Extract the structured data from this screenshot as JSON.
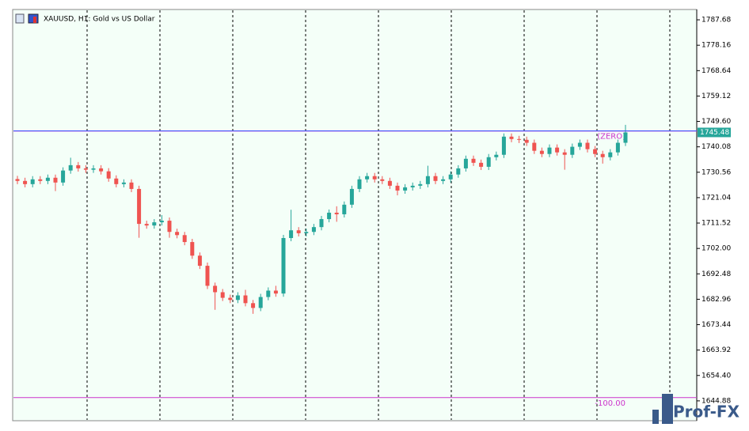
{
  "chart_data": {
    "type": "candlestick",
    "title": "XAUUSD, H1:  Gold vs US Dollar",
    "watermark": "Prof-FX",
    "up_color": "#26a69a",
    "down_color": "#ef5350",
    "ylim": [
      1637.44,
      1791.55
    ],
    "yticks": [
      1787.68,
      1778.16,
      1768.64,
      1759.12,
      {
        "value": 1749.6,
        "label": "1749.60"
      },
      1740.08,
      1730.56,
      1721.04,
      1711.52,
      {
        "value": 1702,
        "label": "1702.00"
      },
      1692.48,
      1682.96,
      1673.44,
      1663.92,
      {
        "value": 1654.4,
        "label": "1654.40"
      },
      1644.88
    ],
    "bid": 1745.48,
    "levels": [
      {
        "label": "(ZERO)",
        "value": 1746.0,
        "color": "#cc33cc"
      },
      {
        "label": "-100.00",
        "value": 1646.1,
        "color": "#cc33cc"
      }
    ],
    "open": [
      1728.0,
      1727.3,
      1726.1,
      1727.9,
      1727.3,
      1728.5,
      1726.7,
      1731.2,
      1733.2,
      1732.0,
      1731.5,
      1732.0,
      1730.9,
      1728.2,
      1726.1,
      1726.7,
      1724.3,
      1711.2,
      1710.6,
      1711.8,
      1712.4,
      1708.2,
      1707.0,
      1704.4,
      1699.3,
      1695.5,
      1688.0,
      1685.6,
      1683.5,
      1682.7,
      1684.4,
      1681.5,
      1679.7,
      1683.8,
      1686.2,
      1685.1,
      1705.9,
      1708.8,
      1707.7,
      1708.2,
      1710.0,
      1713.0,
      1715.4,
      1714.8,
      1718.4,
      1724.3,
      1727.9,
      1729.1,
      1727.9,
      1727.3,
      1725.5,
      1723.7,
      1724.9,
      1725.5,
      1726.1,
      1729.1,
      1727.3,
      1727.9,
      1729.7,
      1732.0,
      1735.6,
      1734.1,
      1732.6,
      1736.2,
      1737.1,
      1743.9,
      1743.0,
      1742.7,
      1741.6,
      1738.6,
      1737.4,
      1739.8,
      1738.0,
      1737.1,
      1740.1,
      1741.6,
      1739.2,
      1737.4,
      1736.2,
      1738.0,
      1741.6
    ],
    "high": [
      1729.2,
      1728.5,
      1729.1,
      1729.1,
      1729.7,
      1729.7,
      1732.4,
      1736.0,
      1734.4,
      1733.2,
      1733.2,
      1733.2,
      1732.1,
      1729.4,
      1727.9,
      1727.9,
      1725.5,
      1712.4,
      1713.0,
      1714.5,
      1713.6,
      1709.4,
      1708.2,
      1705.6,
      1700.5,
      1696.7,
      1689.2,
      1686.8,
      1684.7,
      1685.6,
      1686.5,
      1682.7,
      1685.0,
      1687.4,
      1688.0,
      1707.1,
      1716.5,
      1710.0,
      1709.4,
      1711.2,
      1714.2,
      1716.6,
      1717.8,
      1719.6,
      1725.5,
      1729.1,
      1730.3,
      1730.3,
      1729.1,
      1728.5,
      1726.7,
      1726.1,
      1726.7,
      1727.3,
      1733.0,
      1730.3,
      1729.1,
      1730.9,
      1733.2,
      1736.8,
      1736.8,
      1735.3,
      1737.4,
      1738.3,
      1745.1,
      1745.1,
      1744.2,
      1743.9,
      1742.8,
      1739.8,
      1741.0,
      1741.0,
      1739.2,
      1741.3,
      1742.8,
      1742.8,
      1740.4,
      1738.6,
      1739.2,
      1742.8,
      1748.3
    ],
    "low": [
      1726.1,
      1724.9,
      1724.9,
      1726.1,
      1726.1,
      1723.5,
      1725.5,
      1730.0,
      1730.8,
      1730.3,
      1730.3,
      1729.7,
      1727.0,
      1724.9,
      1724.9,
      1723.1,
      1706.0,
      1709.4,
      1709.4,
      1710.6,
      1706.0,
      1705.8,
      1703.2,
      1698.1,
      1694.3,
      1686.8,
      1679.0,
      1682.3,
      1681.5,
      1681.5,
      1680.3,
      1677.5,
      1678.5,
      1682.6,
      1683.9,
      1683.9,
      1704.7,
      1706.5,
      1706.5,
      1707.0,
      1708.8,
      1711.8,
      1712.0,
      1713.6,
      1717.2,
      1723.1,
      1726.7,
      1726.7,
      1726.1,
      1724.3,
      1721.9,
      1722.5,
      1723.7,
      1724.3,
      1724.9,
      1726.1,
      1726.1,
      1726.7,
      1728.5,
      1730.8,
      1732.9,
      1731.4,
      1731.4,
      1735.0,
      1735.9,
      1741.8,
      1741.5,
      1740.4,
      1737.4,
      1736.2,
      1736.2,
      1736.8,
      1731.5,
      1735.9,
      1738.9,
      1738.0,
      1736.2,
      1733.8,
      1735.0,
      1736.8,
      1740.4
    ],
    "close": [
      1727.3,
      1726.1,
      1727.9,
      1727.3,
      1728.5,
      1726.7,
      1731.2,
      1733.2,
      1732.0,
      1731.5,
      1732.0,
      1730.9,
      1728.2,
      1726.1,
      1726.7,
      1724.3,
      1711.2,
      1710.6,
      1711.8,
      1712.4,
      1708.2,
      1707.0,
      1704.4,
      1699.3,
      1695.5,
      1688.0,
      1685.6,
      1683.5,
      1682.7,
      1684.4,
      1681.5,
      1679.7,
      1683.8,
      1686.2,
      1685.1,
      1705.9,
      1708.8,
      1707.7,
      1708.2,
      1710.0,
      1713.0,
      1715.4,
      1714.8,
      1718.4,
      1724.3,
      1727.9,
      1729.1,
      1727.9,
      1727.3,
      1725.5,
      1723.7,
      1724.9,
      1725.5,
      1726.1,
      1729.1,
      1727.3,
      1727.9,
      1729.7,
      1732.0,
      1735.6,
      1734.1,
      1732.6,
      1736.2,
      1737.1,
      1743.9,
      1743.0,
      1742.7,
      1741.6,
      1738.6,
      1737.4,
      1739.8,
      1738.0,
      1737.1,
      1740.1,
      1741.6,
      1739.2,
      1737.4,
      1736.2,
      1738.0,
      1741.6,
      1745.48
    ]
  }
}
